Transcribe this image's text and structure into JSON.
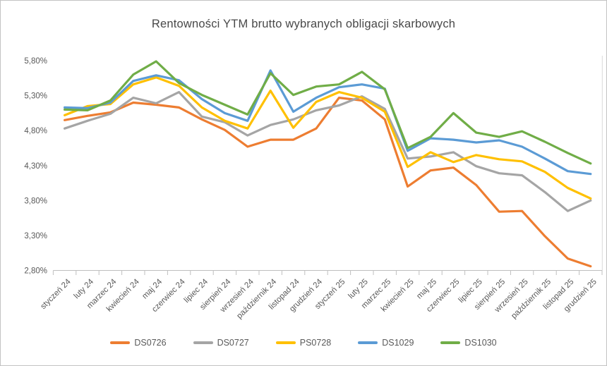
{
  "window": {
    "background": "#ffffff",
    "border_color": "#c3c3c3",
    "axis_color": "#bfbfbf",
    "plot_right_border_color": "#d9d9d9"
  },
  "chart_data": {
    "type": "line",
    "title": "Rentowności YTM brutto wybranych obligacji skarbowych",
    "categories": [
      "styczeń 24",
      "luty 24",
      "marzec 24",
      "kwiecień 24",
      "maj 24",
      "czerwiec 24",
      "lipiec 24",
      "sierpień 24",
      "wrzesień 24",
      "październik 24",
      "listopad 24",
      "grudzień 24",
      "styczeń 25",
      "luty 25",
      "marzec 25",
      "kwiecień 25",
      "maj 25",
      "czerwiec 25",
      "lipiec 25",
      "sierpień 25",
      "wrzesień 25",
      "październik 25",
      "listopad 25",
      "grudzień 25"
    ],
    "series": [
      {
        "name": "DS0726",
        "color": "#ED7D31",
        "values": [
          4.95,
          5.01,
          5.06,
          5.2,
          5.17,
          5.13,
          4.96,
          4.81,
          4.57,
          4.67,
          4.67,
          4.83,
          5.27,
          5.23,
          4.96,
          4.0,
          4.23,
          4.27,
          4.02,
          3.64,
          3.65,
          3.29,
          2.97,
          2.86
        ]
      },
      {
        "name": "DS0727",
        "color": "#A5A5A5",
        "values": [
          4.83,
          4.94,
          5.04,
          5.27,
          5.19,
          5.35,
          5.0,
          4.92,
          4.73,
          4.88,
          4.96,
          5.09,
          5.16,
          5.29,
          5.11,
          4.4,
          4.43,
          4.49,
          4.29,
          4.19,
          4.16,
          3.92,
          3.65,
          3.8
        ]
      },
      {
        "name": "PS0728",
        "color": "#FFC000",
        "values": [
          5.02,
          5.15,
          5.18,
          5.46,
          5.56,
          5.44,
          5.13,
          4.94,
          4.83,
          5.37,
          4.84,
          5.21,
          5.35,
          5.27,
          5.07,
          4.28,
          4.49,
          4.35,
          4.45,
          4.39,
          4.36,
          4.21,
          3.98,
          3.83
        ]
      },
      {
        "name": "DS1029",
        "color": "#5B9BD5",
        "values": [
          5.13,
          5.12,
          5.2,
          5.51,
          5.59,
          5.52,
          5.25,
          5.05,
          4.94,
          5.66,
          5.07,
          5.27,
          5.42,
          5.46,
          5.4,
          4.51,
          4.69,
          4.67,
          4.63,
          4.66,
          4.57,
          4.4,
          4.22,
          4.18
        ]
      },
      {
        "name": "DS1030",
        "color": "#70AD47",
        "values": [
          5.1,
          5.09,
          5.23,
          5.6,
          5.79,
          5.48,
          5.31,
          5.17,
          5.03,
          5.62,
          5.31,
          5.43,
          5.46,
          5.64,
          5.39,
          4.55,
          4.71,
          5.05,
          4.77,
          4.71,
          4.79,
          4.64,
          4.48,
          4.33
        ]
      }
    ],
    "y_axis": {
      "min": 2.8,
      "max": 5.8,
      "step": 0.5,
      "tick_labels": [
        "2,80%",
        "3,30%",
        "3,80%",
        "4,30%",
        "4,80%",
        "5,30%",
        "5,80%"
      ],
      "format": "percent-comma"
    },
    "x_axis": {
      "label_rotation_deg": 45
    },
    "legend_position": "bottom",
    "grid": false
  }
}
